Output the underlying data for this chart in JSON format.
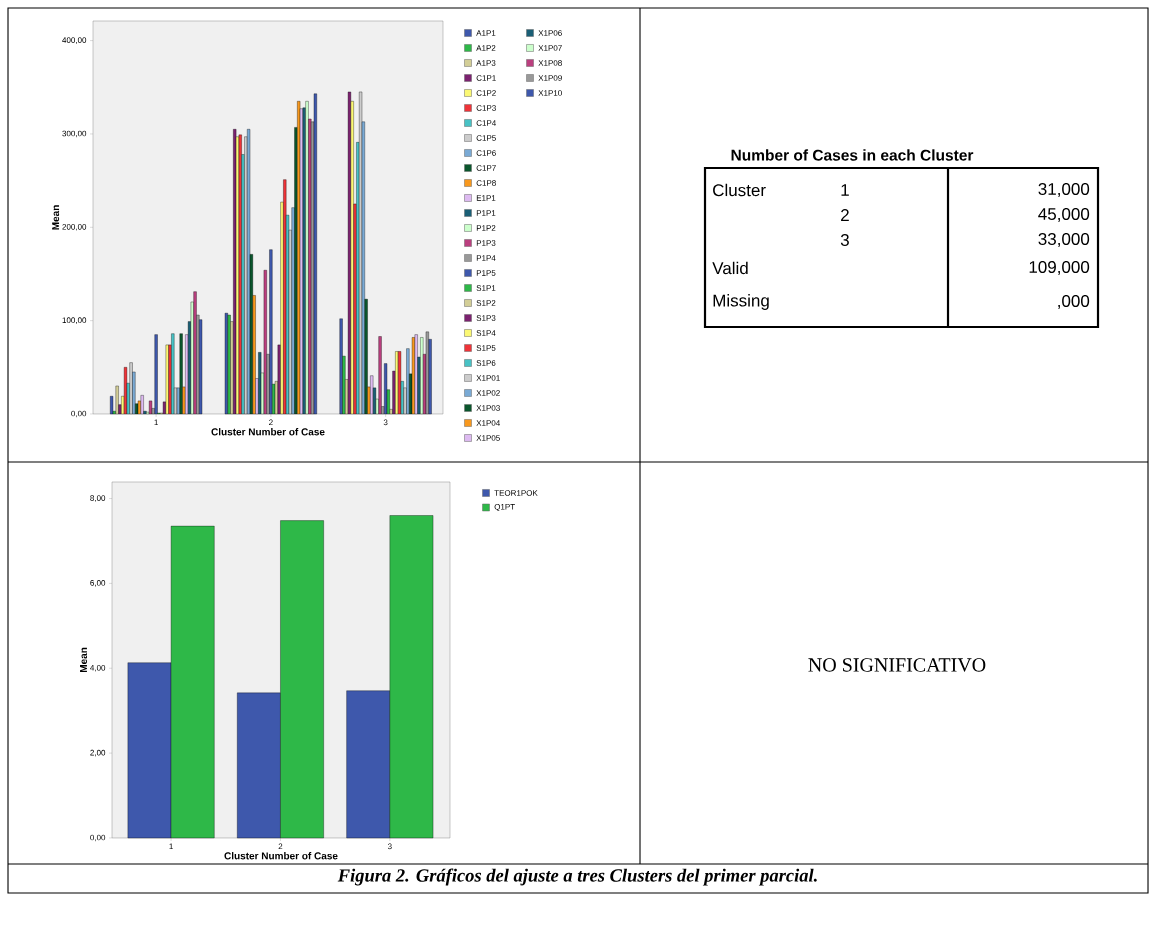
{
  "chart_data": [
    {
      "type": "bar",
      "xlabel": "Cluster Number of Case",
      "ylabel": "Mean",
      "categories": [
        "1",
        "2",
        "3"
      ],
      "ylim": [
        0,
        421
      ],
      "yticks": [
        {
          "value": 0,
          "label": "0,00"
        },
        {
          "value": 100,
          "label": "100,00"
        },
        {
          "value": 200,
          "label": "200,00"
        },
        {
          "value": 300,
          "label": "300,00"
        },
        {
          "value": 400,
          "label": "400,00"
        }
      ],
      "legend": "right",
      "series": [
        {
          "name": "A1P1",
          "color": "#3e58ac",
          "values": [
            19,
            108,
            102
          ]
        },
        {
          "name": "A1P2",
          "color": "#2eb848",
          "values": [
            3,
            106,
            62
          ]
        },
        {
          "name": "A1P3",
          "color": "#d3ce97",
          "values": [
            30,
            99,
            37
          ]
        },
        {
          "name": "C1P1",
          "color": "#7c2270",
          "values": [
            10,
            305,
            345
          ]
        },
        {
          "name": "C1P2",
          "color": "#fbf873",
          "values": [
            19,
            297,
            335
          ]
        },
        {
          "name": "C1P3",
          "color": "#ef3338",
          "values": [
            50,
            299,
            225
          ]
        },
        {
          "name": "C1P4",
          "color": "#48c2c5",
          "values": [
            33,
            278,
            291
          ]
        },
        {
          "name": "C1P5",
          "color": "#cccccc",
          "values": [
            55,
            297,
            345
          ]
        },
        {
          "name": "C1P6",
          "color": "#7aaad5",
          "values": [
            45,
            305,
            313
          ]
        },
        {
          "name": "C1P7",
          "color": "#0a562c",
          "values": [
            11,
            171,
            123
          ]
        },
        {
          "name": "C1P8",
          "color": "#f8981d",
          "values": [
            14,
            127,
            29
          ]
        },
        {
          "name": "E1P1",
          "color": "#ddbaf1",
          "values": [
            20,
            38,
            41
          ]
        },
        {
          "name": "P1P1",
          "color": "#1a5f76",
          "values": [
            3,
            66,
            28
          ]
        },
        {
          "name": "P1P2",
          "color": "#ccffcc",
          "values": [
            2,
            44,
            16
          ]
        },
        {
          "name": "P1P3",
          "color": "#bb3f7f",
          "values": [
            14,
            154,
            83
          ]
        },
        {
          "name": "P1P4",
          "color": "#999999",
          "values": [
            6,
            64,
            8
          ]
        },
        {
          "name": "P1P5",
          "color": "#3e58ac",
          "values": [
            85,
            176,
            54
          ]
        },
        {
          "name": "S1P1",
          "color": "#2eb848",
          "values": [
            1,
            32,
            26
          ]
        },
        {
          "name": "S1P2",
          "color": "#d3ce97",
          "values": [
            1,
            35,
            5
          ]
        },
        {
          "name": "S1P3",
          "color": "#7c2270",
          "values": [
            13,
            74,
            46
          ]
        },
        {
          "name": "S1P4",
          "color": "#fbf873",
          "values": [
            74,
            227,
            67
          ]
        },
        {
          "name": "S1P5",
          "color": "#ef3338",
          "values": [
            74,
            251,
            67
          ]
        },
        {
          "name": "S1P6",
          "color": "#48c2c5",
          "values": [
            86,
            213,
            35
          ]
        },
        {
          "name": "X1P01",
          "color": "#cccccc",
          "values": [
            28,
            197,
            28
          ]
        },
        {
          "name": "X1P02",
          "color": "#7aaad5",
          "values": [
            28,
            221,
            70
          ]
        },
        {
          "name": "X1P03",
          "color": "#0a562c",
          "values": [
            86,
            307,
            43
          ]
        },
        {
          "name": "X1P04",
          "color": "#f8981d",
          "values": [
            29,
            335,
            82
          ]
        },
        {
          "name": "X1P05",
          "color": "#ddbaf1",
          "values": [
            85,
            327,
            85
          ]
        },
        {
          "name": "X1P06",
          "color": "#1a5f76",
          "values": [
            99,
            328,
            61
          ]
        },
        {
          "name": "X1P07",
          "color": "#ccffcc",
          "values": [
            120,
            335,
            82
          ]
        },
        {
          "name": "X1P08",
          "color": "#bb3f7f",
          "values": [
            131,
            316,
            64
          ]
        },
        {
          "name": "X1P09",
          "color": "#999999",
          "values": [
            106,
            313,
            88
          ]
        },
        {
          "name": "X1P10",
          "color": "#3e58ac",
          "values": [
            101,
            343,
            80
          ]
        }
      ]
    },
    {
      "type": "other",
      "title": "Number of Cases in each Cluster",
      "annotations": [
        "Cluster",
        "1",
        "31,000",
        "2",
        "45,000",
        "3",
        "33,000",
        "Valid",
        "109,000",
        "Missing",
        ",000"
      ]
    },
    {
      "type": "bar",
      "xlabel": "Cluster Number of Case",
      "ylabel": "Mean",
      "categories": [
        "1",
        "2",
        "3"
      ],
      "ylim": [
        0,
        8.39
      ],
      "yticks": [
        {
          "value": 0,
          "label": "0,00"
        },
        {
          "value": 2,
          "label": "2,00"
        },
        {
          "value": 4,
          "label": "4,00"
        },
        {
          "value": 6,
          "label": "6,00"
        },
        {
          "value": 8,
          "label": "8,00"
        }
      ],
      "legend": "right",
      "series": [
        {
          "name": "TEOR1POK",
          "color": "#3e58ac",
          "values": [
            4.13,
            3.42,
            3.47
          ]
        },
        {
          "name": "Q1PT",
          "color": "#2eb848",
          "values": [
            7.35,
            7.48,
            7.6
          ]
        }
      ]
    },
    {
      "type": "other",
      "annotations": [
        "NO SIGNIFICATIVO"
      ]
    },
    {
      "type": "other",
      "annotations": [
        "Figura 2. Gráficos del ajuste a tres Clusters del primer parcial."
      ]
    }
  ]
}
